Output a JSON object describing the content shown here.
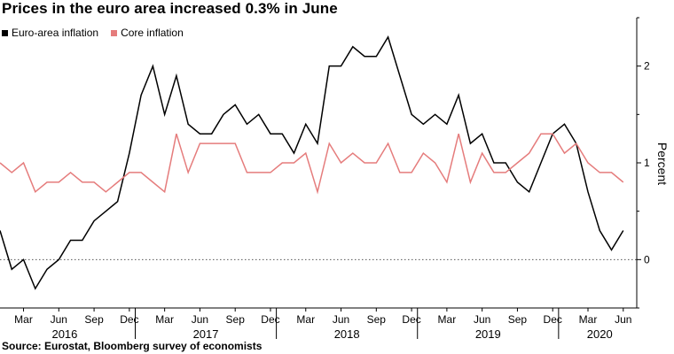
{
  "chart_data": {
    "type": "line",
    "title": "Prices in the euro area increased 0.3% in June",
    "ylabel": "Percent",
    "xlabel": "",
    "ylim": [
      -0.5,
      2.5
    ],
    "yticks": [
      0,
      1,
      2
    ],
    "zero_line": "dotted",
    "legend_position": "top-left",
    "x": [
      "2016-01",
      "2016-02",
      "2016-03",
      "2016-04",
      "2016-05",
      "2016-06",
      "2016-07",
      "2016-08",
      "2016-09",
      "2016-10",
      "2016-11",
      "2016-12",
      "2017-01",
      "2017-02",
      "2017-03",
      "2017-04",
      "2017-05",
      "2017-06",
      "2017-07",
      "2017-08",
      "2017-09",
      "2017-10",
      "2017-11",
      "2017-12",
      "2018-01",
      "2018-02",
      "2018-03",
      "2018-04",
      "2018-05",
      "2018-06",
      "2018-07",
      "2018-08",
      "2018-09",
      "2018-10",
      "2018-11",
      "2018-12",
      "2019-01",
      "2019-02",
      "2019-03",
      "2019-04",
      "2019-05",
      "2019-06",
      "2019-07",
      "2019-08",
      "2019-09",
      "2019-10",
      "2019-11",
      "2019-12",
      "2020-01",
      "2020-02",
      "2020-03",
      "2020-04",
      "2020-05",
      "2020-06"
    ],
    "x_ticks": [
      {
        "index": 2,
        "label": "Mar"
      },
      {
        "index": 5,
        "label": "Jun"
      },
      {
        "index": 8,
        "label": "Sep"
      },
      {
        "index": 11,
        "label": "Dec"
      },
      {
        "index": 14,
        "label": "Mar"
      },
      {
        "index": 17,
        "label": "Jun"
      },
      {
        "index": 20,
        "label": "Sep"
      },
      {
        "index": 23,
        "label": "Dec"
      },
      {
        "index": 26,
        "label": "Mar"
      },
      {
        "index": 29,
        "label": "Jun"
      },
      {
        "index": 32,
        "label": "Sep"
      },
      {
        "index": 35,
        "label": "Dec"
      },
      {
        "index": 38,
        "label": "Mar"
      },
      {
        "index": 41,
        "label": "Jun"
      },
      {
        "index": 44,
        "label": "Sep"
      },
      {
        "index": 47,
        "label": "Dec"
      },
      {
        "index": 50,
        "label": "Mar"
      },
      {
        "index": 53,
        "label": "Jun"
      }
    ],
    "years": [
      {
        "label": "2016",
        "center_index": 5.5
      },
      {
        "label": "2017",
        "center_index": 17.5
      },
      {
        "label": "2018",
        "center_index": 29.5
      },
      {
        "label": "2019",
        "center_index": 41.5
      },
      {
        "label": "2020",
        "center_index": 51
      }
    ],
    "year_separators": [
      11.5,
      23.5,
      35.5,
      47.5
    ],
    "series": [
      {
        "name": "Euro-area inflation",
        "color": "#000000",
        "values": [
          0.3,
          -0.1,
          0.0,
          -0.3,
          -0.1,
          0.0,
          0.2,
          0.2,
          0.4,
          0.5,
          0.6,
          1.1,
          1.7,
          2.0,
          1.5,
          1.9,
          1.4,
          1.3,
          1.3,
          1.5,
          1.6,
          1.4,
          1.5,
          1.3,
          1.3,
          1.1,
          1.4,
          1.2,
          2.0,
          2.0,
          2.2,
          2.1,
          2.1,
          2.3,
          1.9,
          1.5,
          1.4,
          1.5,
          1.4,
          1.7,
          1.2,
          1.3,
          1.0,
          1.0,
          0.8,
          0.7,
          1.0,
          1.3,
          1.4,
          1.2,
          0.7,
          0.3,
          0.1,
          0.3
        ]
      },
      {
        "name": "Core inflation",
        "color": "#e57c7c",
        "values": [
          1.0,
          0.9,
          1.0,
          0.7,
          0.8,
          0.8,
          0.9,
          0.8,
          0.8,
          0.7,
          0.8,
          0.9,
          0.9,
          0.8,
          0.7,
          1.3,
          0.9,
          1.2,
          1.2,
          1.2,
          1.2,
          0.9,
          0.9,
          0.9,
          1.0,
          1.0,
          1.1,
          0.7,
          1.2,
          1.0,
          1.1,
          1.0,
          1.0,
          1.2,
          0.9,
          0.9,
          1.1,
          1.0,
          0.8,
          1.3,
          0.8,
          1.1,
          0.9,
          0.9,
          1.0,
          1.1,
          1.3,
          1.3,
          1.1,
          1.2,
          1.0,
          0.9,
          0.9,
          0.8
        ]
      }
    ],
    "source": "Source: Eurostat, Bloomberg survey of economists"
  }
}
